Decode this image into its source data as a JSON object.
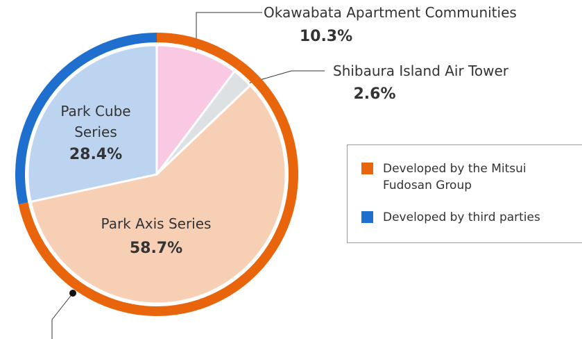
{
  "chart_data": {
    "type": "pie",
    "categories": [
      "Okawabata Apartment Communities",
      "Shibaura Island Air Tower",
      "Park Axis Series",
      "Park Cube Series"
    ],
    "values": [
      10.3,
      2.6,
      58.7,
      28.4
    ],
    "value_labels": [
      "10.3%",
      "2.6%",
      "58.7%",
      "28.4%"
    ],
    "colors": [
      "#f9c9e3",
      "#dde1e4",
      "#f7cfb5",
      "#bcd4f0"
    ],
    "groups": [
      0,
      0,
      0,
      1
    ],
    "legend": [
      {
        "name": "Developed by the Mitsui Fudosan Group",
        "color": "#e8650c"
      },
      {
        "name": "Developed by third parties",
        "color": "#1f6fce"
      }
    ]
  }
}
